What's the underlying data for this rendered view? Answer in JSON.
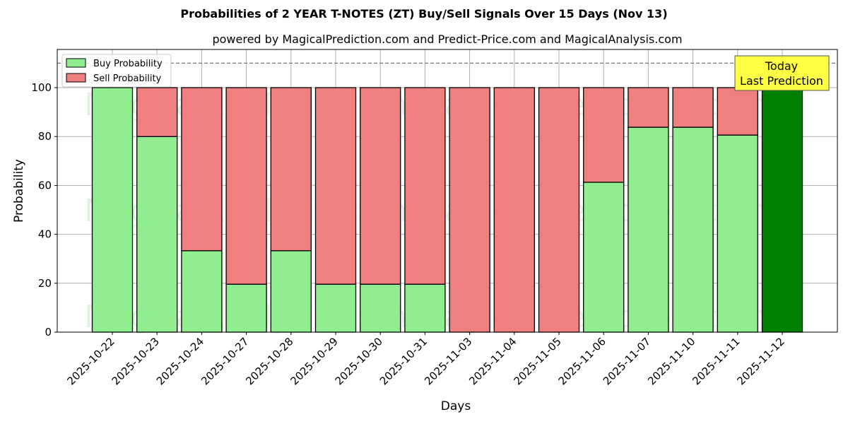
{
  "chart_data": {
    "type": "bar",
    "stacked": true,
    "title": "Probabilities of 2 YEAR T-NOTES (ZT) Buy/Sell Signals Over 15 Days (Nov 13)",
    "subtitle": "powered by MagicalPrediction.com and Predict-Price.com and MagicalAnalysis.com",
    "xlabel": "Days",
    "ylabel": "Probability",
    "ylim": [
      0,
      115
    ],
    "yticks": [
      0,
      20,
      40,
      60,
      80,
      100
    ],
    "grid": true,
    "legend_position": "upper left",
    "reference_line": 110,
    "categories": [
      "2025-10-22",
      "2025-10-23",
      "2025-10-24",
      "2025-10-27",
      "2025-10-28",
      "2025-10-29",
      "2025-10-30",
      "2025-10-31",
      "2025-11-03",
      "2025-11-04",
      "2025-11-05",
      "2025-11-06",
      "2025-11-07",
      "2025-11-10",
      "2025-11-11",
      "2025-11-12"
    ],
    "series": [
      {
        "name": "Buy Probability",
        "color": "#90EE90",
        "values": [
          100,
          80,
          33.3,
          19.6,
          33.3,
          19.6,
          19.6,
          19.6,
          0,
          0,
          0,
          61.3,
          83.8,
          83.8,
          80.6,
          100
        ]
      },
      {
        "name": "Sell Probability",
        "color": "#F08080",
        "values": [
          0,
          20,
          66.7,
          80.4,
          66.7,
          80.4,
          80.4,
          80.4,
          100,
          100,
          100,
          38.7,
          16.2,
          16.2,
          19.4,
          0
        ]
      }
    ],
    "highlight": {
      "index": 15,
      "color": "#008000",
      "label_line1": "Today",
      "label_line2": "Last Prediction",
      "box_color": "#FFFF44"
    },
    "watermarks": [
      "MagicalAnalysis.com",
      "MagicalPrediction.com"
    ]
  }
}
